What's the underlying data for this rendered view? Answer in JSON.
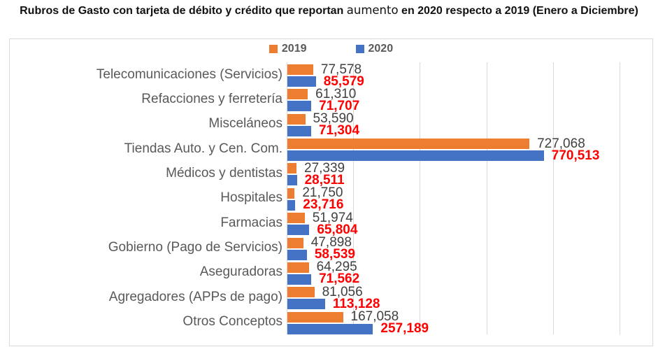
{
  "title": {
    "part1": "Rubros de Gasto con tarjeta de débito y crédito que reportan ",
    "highlight": "aumento",
    "part2": " en 2020 respecto a 2019 (Enero a Diciembre)"
  },
  "colors": {
    "series_2019": "#ED7D31",
    "series_2020": "#4472C4",
    "value_label_2019": "#404040",
    "value_label_2020": "#FF0000",
    "category_label": "#595959",
    "gridline": "#D9D9D9",
    "title": "#111111"
  },
  "chart_data": {
    "type": "bar",
    "orientation": "horizontal",
    "title": "Rubros de Gasto con tarjeta de débito y crédito que reportan aumento en 2020 respecto a 2019 (Enero a Diciembre)",
    "legend_position": "top",
    "grid": true,
    "xlim": [
      0,
      1100000
    ],
    "gridlines_at": [
      200000,
      400000,
      600000,
      800000,
      1000000
    ],
    "categories": [
      "Telecomunicaciones (Servicios)",
      "Refacciones y ferretería",
      "Misceláneos",
      "Tiendas Auto. y Cen. Com.",
      "Médicos y dentistas",
      "Hospitales",
      "Farmacias",
      "Gobierno (Pago de Servicios)",
      "Aseguradoras",
      "Agregadores (APPs de pago)",
      "Otros Conceptos"
    ],
    "series": [
      {
        "name": "2019",
        "color": "#ED7D31",
        "label_color": "#404040",
        "label_bold": false,
        "values": [
          77578,
          61310,
          53590,
          727068,
          27339,
          21750,
          51974,
          47898,
          64295,
          81056,
          167058
        ],
        "labels": [
          "77,578",
          "61,310",
          "53,590",
          "727,068",
          "27,339",
          "21,750",
          "51,974",
          "47,898",
          "64,295",
          "81,056",
          "167,058"
        ]
      },
      {
        "name": "2020",
        "color": "#4472C4",
        "label_color": "#FF0000",
        "label_bold": true,
        "values": [
          85579,
          71707,
          71304,
          770513,
          28511,
          23716,
          65804,
          58539,
          71562,
          113128,
          257189
        ],
        "labels": [
          "85,579",
          "71,707",
          "71,304",
          "770,513",
          "28,511",
          "23,716",
          "65,804",
          "58,539",
          "71,562",
          "113,128",
          "257,189"
        ]
      }
    ]
  }
}
